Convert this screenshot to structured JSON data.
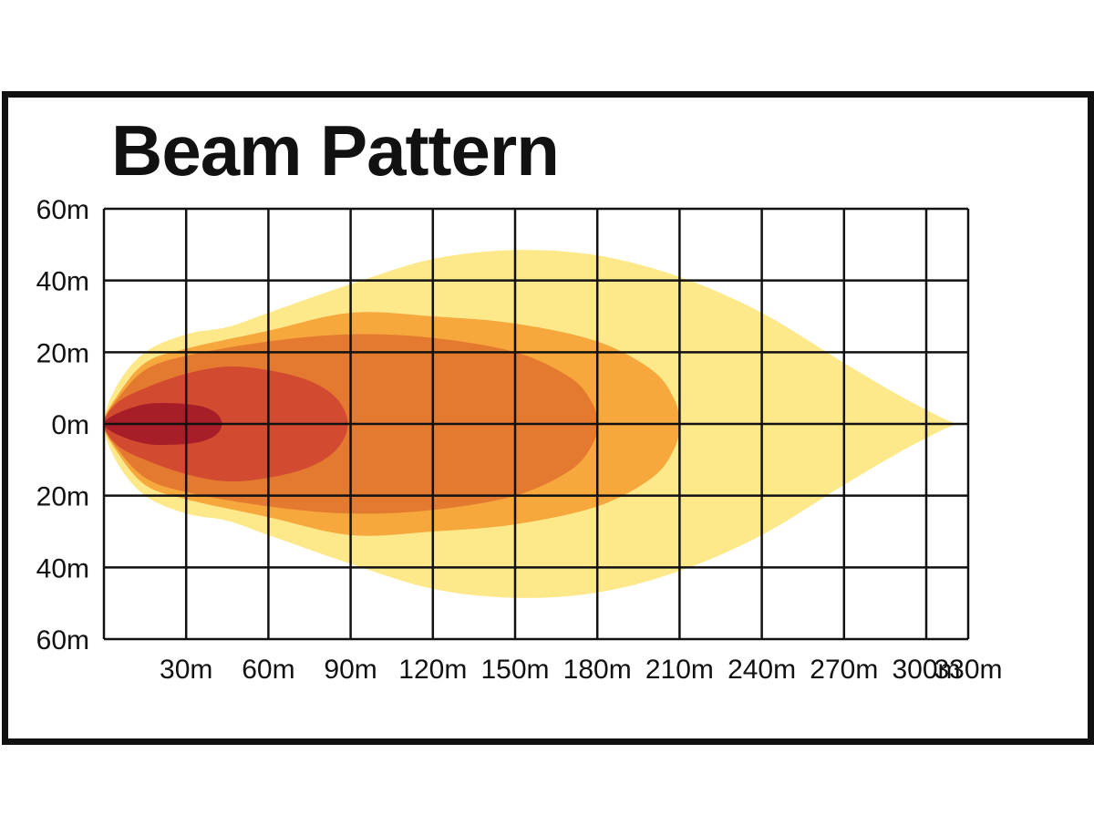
{
  "chart_data": {
    "type": "area",
    "title": "Beam Pattern",
    "xlabel": "",
    "ylabel": "",
    "x_ticks": [
      "30m",
      "60m",
      "90m",
      "120m",
      "150m",
      "180m",
      "210m",
      "240m",
      "270m",
      "300m",
      "330m"
    ],
    "x_tick_values": [
      30,
      60,
      90,
      120,
      150,
      180,
      210,
      240,
      270,
      300,
      330
    ],
    "y_ticks": [
      "60m",
      "40m",
      "20m",
      "0m",
      "20m",
      "40m",
      "60m"
    ],
    "y_tick_values": [
      60,
      40,
      20,
      0,
      -20,
      -40,
      -60
    ],
    "xlim": [
      0,
      315
    ],
    "ylim": [
      -60,
      60
    ],
    "grid": true,
    "colors": {
      "zone_1": "#FDE98A",
      "zone_2": "#F7A83C",
      "zone_3": "#E47A30",
      "zone_4": "#D24A30",
      "zone_5": "#A81E28",
      "grid": "#111111"
    },
    "series": [
      {
        "color": "#FDE98A",
        "x": [
          0,
          5,
          15,
          30,
          45,
          60,
          90,
          120,
          150,
          180,
          210,
          240,
          270,
          290,
          305,
          310,
          305,
          290,
          270,
          240,
          210,
          180,
          150,
          120,
          90,
          60,
          45,
          30,
          15,
          5,
          0
        ],
        "y": [
          0,
          11,
          20,
          25,
          27,
          31,
          39,
          46,
          48.5,
          47,
          41,
          31,
          17,
          8,
          2,
          0,
          -2,
          -8,
          -17,
          -31,
          -41,
          -47,
          -48.5,
          -46,
          -39,
          -31,
          -27,
          -25,
          -20,
          -11,
          0
        ]
      },
      {
        "color": "#F7A83C",
        "x": [
          0,
          5,
          15,
          30,
          60,
          90,
          120,
          150,
          180,
          200,
          208,
          210,
          208,
          200,
          180,
          150,
          120,
          90,
          60,
          30,
          15,
          5,
          0
        ],
        "y": [
          0,
          8,
          17,
          21,
          26,
          31,
          30,
          28,
          23,
          15,
          7,
          0,
          -7,
          -15,
          -23,
          -28,
          -30,
          -31,
          -26,
          -21,
          -17,
          -8,
          0
        ]
      },
      {
        "color": "#E47A30",
        "x": [
          0,
          5,
          15,
          30,
          60,
          90,
          120,
          150,
          170,
          178,
          180,
          178,
          170,
          150,
          120,
          90,
          60,
          30,
          15,
          5,
          0
        ],
        "y": [
          0,
          7,
          15,
          19,
          23,
          25,
          24,
          20,
          13,
          6,
          0,
          -6,
          -13,
          -20,
          -24,
          -25,
          -23,
          -19,
          -15,
          -7,
          0
        ]
      },
      {
        "color": "#D24A30",
        "x": [
          0,
          5,
          15,
          30,
          45,
          60,
          75,
          85,
          89,
          85,
          75,
          60,
          45,
          30,
          15,
          5,
          0
        ],
        "y": [
          0,
          6,
          10,
          14,
          16,
          15,
          12,
          7,
          0,
          -7,
          -12,
          -15,
          -16,
          -14,
          -10,
          -6,
          0
        ]
      },
      {
        "color": "#A81E28",
        "x": [
          0,
          5,
          15,
          25,
          35,
          41,
          43,
          41,
          35,
          25,
          15,
          5,
          0
        ],
        "y": [
          0,
          3,
          5.5,
          5.8,
          5,
          3,
          0,
          -3,
          -5,
          -5.8,
          -5.5,
          -3,
          0
        ]
      }
    ]
  }
}
